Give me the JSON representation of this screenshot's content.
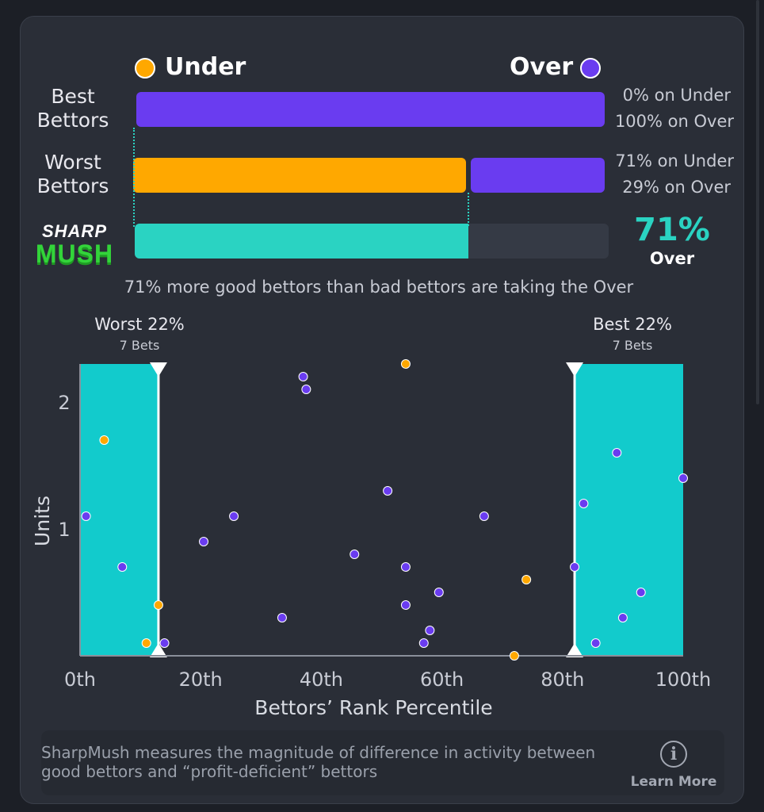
{
  "legend": {
    "under_label": "Under",
    "over_label": "Over",
    "under_color": "#ffa800",
    "over_color": "#6a3cf0"
  },
  "rows": [
    {
      "label": "Best Bettors",
      "under_pct": 0,
      "over_pct": 100,
      "under_text": "0% on Under",
      "over_text": "100% on Over"
    },
    {
      "label": "Worst Bettors",
      "under_pct": 71,
      "over_pct": 29,
      "under_text": "71% on Under",
      "over_text": "29% on Over"
    }
  ],
  "sharpmush": {
    "logo_top": "SHARP",
    "logo_bottom": "MUSH",
    "value_pct": 71,
    "value_text": "71%",
    "side_text": "Over",
    "bar_color": "#2ad3c2"
  },
  "caption": "71% more good bettors than bad bettors are taking the Over",
  "zones": {
    "worst_title": "Worst 22%",
    "worst_sub": "7 Bets",
    "best_title": "Best 22%",
    "best_sub": "7 Bets",
    "zone_color": "#12cbcc"
  },
  "footer": {
    "text": "SharpMush measures the magnitude of difference in activity between good bettors and “profit-deficient” bettors",
    "learn_more": "Learn More"
  },
  "chart_data": {
    "type": "scatter",
    "xlabel": "Bettors’ Rank Percentile",
    "ylabel": "Units",
    "xlim": [
      0,
      100
    ],
    "ylim": [
      0,
      2.3
    ],
    "x_ticks": [
      0,
      20,
      40,
      60,
      80,
      100
    ],
    "x_tick_labels": [
      "0th",
      "20th",
      "40th",
      "60th",
      "80th",
      "100th"
    ],
    "y_ticks": [
      1,
      2
    ],
    "y_tick_labels": [
      "1",
      "2"
    ],
    "zones": [
      {
        "name": "Worst 22%",
        "x_start": 0,
        "x_end": 13
      },
      {
        "name": "Best 22%",
        "x_start": 82,
        "x_end": 100
      }
    ],
    "series": [
      {
        "name": "Over",
        "color": "#6a3cf0",
        "points": [
          [
            1,
            1.1
          ],
          [
            7,
            0.7
          ],
          [
            14,
            0.1
          ],
          [
            20.5,
            0.9
          ],
          [
            25.5,
            1.1
          ],
          [
            33.5,
            0.3
          ],
          [
            37,
            2.2
          ],
          [
            37.5,
            2.1
          ],
          [
            45.5,
            0.8
          ],
          [
            51,
            1.3
          ],
          [
            54,
            0.7
          ],
          [
            54,
            0.4
          ],
          [
            57,
            0.1
          ],
          [
            58,
            0.2
          ],
          [
            59.5,
            0.5
          ],
          [
            67,
            1.1
          ],
          [
            82,
            0.7
          ],
          [
            83.5,
            1.2
          ],
          [
            85.5,
            0.1
          ],
          [
            89,
            1.6
          ],
          [
            90,
            0.3
          ],
          [
            93,
            0.5
          ],
          [
            100,
            1.4
          ]
        ]
      },
      {
        "name": "Under",
        "color": "#ffa800",
        "points": [
          [
            4,
            1.7
          ],
          [
            11,
            0.1
          ],
          [
            13,
            0.4
          ],
          [
            54,
            2.3
          ],
          [
            72,
            0.0
          ],
          [
            74,
            0.6
          ]
        ]
      }
    ]
  }
}
